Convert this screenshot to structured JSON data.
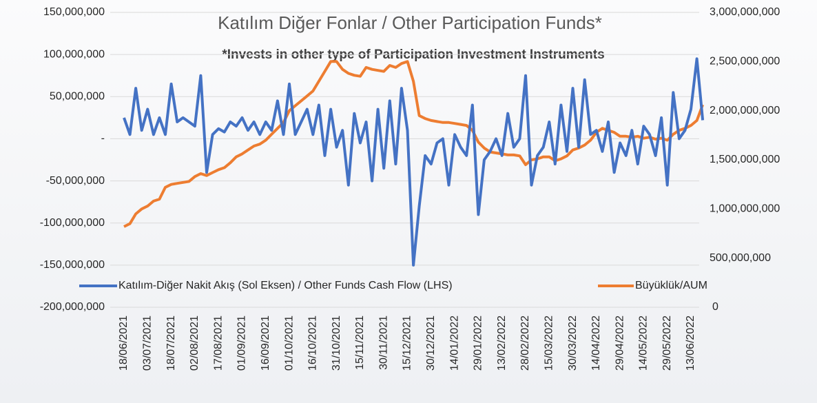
{
  "chart_data": {
    "type": "line",
    "title": "Katılım Diğer Fonlar / Other Participation Funds*",
    "subtitle": "*Invests in other type of Participation Investment Instruments",
    "categories": [
      "18/06/2021",
      null,
      null,
      null,
      "03/07/2021",
      null,
      null,
      null,
      "18/07/2021",
      null,
      null,
      null,
      "02/08/2021",
      null,
      null,
      null,
      "17/08/2021",
      null,
      null,
      null,
      "01/09/2021",
      null,
      null,
      null,
      "16/09/2021",
      null,
      null,
      null,
      "01/10/2021",
      null,
      null,
      null,
      "16/10/2021",
      null,
      null,
      null,
      "31/10/2021",
      null,
      null,
      null,
      "15/11/2021",
      null,
      null,
      null,
      "30/11/2021",
      null,
      null,
      null,
      "15/12/2021",
      null,
      null,
      null,
      "30/12/2021",
      null,
      null,
      null,
      "14/01/2022",
      null,
      null,
      null,
      "29/01/2022",
      null,
      null,
      null,
      "13/02/2022",
      null,
      null,
      null,
      "28/02/2022",
      null,
      null,
      null,
      "15/03/2022",
      null,
      null,
      null,
      "30/03/2022",
      null,
      null,
      null,
      "14/04/2022",
      null,
      null,
      null,
      "29/04/2022",
      null,
      null,
      null,
      "14/05/2022",
      null,
      null,
      null,
      "29/05/2022",
      null,
      null,
      null,
      "13/06/2022",
      null,
      null
    ],
    "series": [
      {
        "name": "Katılım-Diğer Nakit Akış (Sol Eksen) / Other Funds Cash Flow (LHS)",
        "color": "#4472c4",
        "axis": "y",
        "values": [
          25000000,
          5000000,
          60000000,
          10000000,
          35000000,
          5000000,
          25000000,
          5000000,
          65000000,
          20000000,
          25000000,
          20000000,
          15000000,
          75000000,
          -40000000,
          5000000,
          12000000,
          8000000,
          20000000,
          15000000,
          25000000,
          10000000,
          20000000,
          5000000,
          20000000,
          10000000,
          45000000,
          5000000,
          65000000,
          5000000,
          20000000,
          35000000,
          5000000,
          40000000,
          -20000000,
          35000000,
          -10000000,
          10000000,
          -55000000,
          30000000,
          -5000000,
          20000000,
          -50000000,
          35000000,
          -35000000,
          45000000,
          -30000000,
          60000000,
          10000000,
          -150000000,
          -80000000,
          -20000000,
          -30000000,
          -5000000,
          0,
          -55000000,
          5000000,
          -10000000,
          -20000000,
          40000000,
          -90000000,
          -25000000,
          -15000000,
          0,
          -20000000,
          30000000,
          -10000000,
          0,
          75000000,
          -55000000,
          -20000000,
          -10000000,
          20000000,
          -30000000,
          40000000,
          -15000000,
          60000000,
          -10000000,
          70000000,
          5000000,
          10000000,
          -15000000,
          20000000,
          -40000000,
          -5000000,
          -20000000,
          10000000,
          -30000000,
          15000000,
          5000000,
          -20000000,
          25000000,
          -55000000,
          55000000,
          0,
          10000000,
          35000000,
          95000000,
          22000000
        ]
      },
      {
        "name": "Büyüklük/AUM",
        "color": "#ed7d31",
        "axis": "y2",
        "values": [
          820000000,
          850000000,
          950000000,
          1000000000,
          1030000000,
          1080000000,
          1100000000,
          1220000000,
          1250000000,
          1260000000,
          1270000000,
          1280000000,
          1330000000,
          1360000000,
          1340000000,
          1370000000,
          1400000000,
          1420000000,
          1470000000,
          1530000000,
          1560000000,
          1600000000,
          1640000000,
          1660000000,
          1700000000,
          1760000000,
          1820000000,
          1880000000,
          2000000000,
          2050000000,
          2100000000,
          2150000000,
          2200000000,
          2300000000,
          2400000000,
          2500000000,
          2500000000,
          2420000000,
          2380000000,
          2360000000,
          2350000000,
          2440000000,
          2420000000,
          2410000000,
          2400000000,
          2460000000,
          2440000000,
          2480000000,
          2500000000,
          2300000000,
          1950000000,
          1920000000,
          1900000000,
          1890000000,
          1880000000,
          1880000000,
          1870000000,
          1860000000,
          1850000000,
          1800000000,
          1680000000,
          1620000000,
          1580000000,
          1570000000,
          1560000000,
          1550000000,
          1550000000,
          1540000000,
          1450000000,
          1500000000,
          1510000000,
          1530000000,
          1530000000,
          1490000000,
          1510000000,
          1540000000,
          1600000000,
          1620000000,
          1650000000,
          1700000000,
          1780000000,
          1820000000,
          1800000000,
          1780000000,
          1740000000,
          1740000000,
          1730000000,
          1740000000,
          1720000000,
          1730000000,
          1710000000,
          1720000000,
          1700000000,
          1760000000,
          1800000000,
          1820000000,
          1850000000,
          1900000000,
          2060000000
        ]
      }
    ],
    "ylim": [
      -200000000,
      150000000
    ],
    "yticks": [
      {
        "value": -200000000,
        "label": "-200,000,000"
      },
      {
        "value": -150000000,
        "label": "-150,000,000"
      },
      {
        "value": -100000000,
        "label": "-100,000,000"
      },
      {
        "value": -50000000,
        "label": "-50,000,000"
      },
      {
        "value": 0,
        "label": "-"
      },
      {
        "value": 50000000,
        "label": "50,000,000"
      },
      {
        "value": 100000000,
        "label": "100,000,000"
      },
      {
        "value": 150000000,
        "label": "150,000,000"
      }
    ],
    "y2lim": [
      0,
      3000000000
    ],
    "y2ticks": [
      0,
      {
        "value": 500000000,
        "label": "500,000,000"
      },
      {
        "value": 1000000000,
        "label": "1,000,000,000"
      },
      {
        "value": 1500000000,
        "label": "1,500,000,000"
      },
      {
        "value": 2000000000,
        "label": "2,000,000,000"
      },
      {
        "value": 2500000000,
        "label": "2,500,000,000"
      },
      {
        "value": 3000000000,
        "label": "3,000,000,000"
      }
    ],
    "grid": true,
    "legend": "bottom"
  }
}
